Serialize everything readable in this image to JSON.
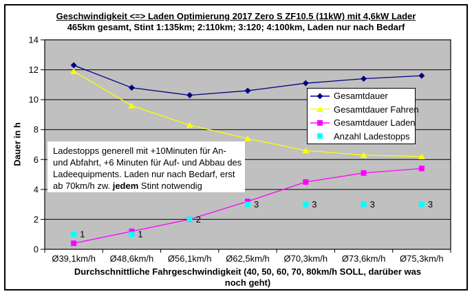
{
  "chart_data": {
    "type": "line",
    "title": "Geschwindigkeit <=> Laden Optimierung 2017 Zero S ZF10.5 (11kW) mit 4,6kW Lader",
    "subtitle": "465km gesamt, Stint 1:135km; 2:110km; 3:120; 4:100km, Laden nur nach Bedarf",
    "ylabel": "Dauer in h",
    "xlabel_lines": [
      "Durchschnittliche Fahrgeschwindigkeit (40, 50, 60, 70, 80km/h SOLL, darüber was",
      "noch geht)"
    ],
    "categories": [
      "Ø39,1km/h",
      "Ø48,6km/h",
      "Ø56,1km/h",
      "Ø62,5km/h",
      "Ø70,3km/h",
      "Ø73,6km/h",
      "Ø75,3km/h"
    ],
    "series": [
      {
        "name": "Gesamtdauer",
        "color": "#000080",
        "marker": "diamond",
        "line": true,
        "show_labels": false,
        "values": [
          12.3,
          10.8,
          10.3,
          10.6,
          11.1,
          11.4,
          11.6
        ]
      },
      {
        "name": "Gesamtdauer Fahren",
        "color": "#FFFF00",
        "marker": "triangle",
        "line": true,
        "show_labels": false,
        "values": [
          11.9,
          9.6,
          8.3,
          7.4,
          6.6,
          6.3,
          6.2
        ]
      },
      {
        "name": "Gesamtdauer Laden",
        "color": "#FF00FF",
        "marker": "square",
        "line": true,
        "show_labels": false,
        "values": [
          0.4,
          1.2,
          2.0,
          3.2,
          4.5,
          5.1,
          5.4
        ]
      },
      {
        "name": "Anzahl Ladestopps",
        "color": "#00FFFF",
        "marker": "square",
        "line": false,
        "show_labels": true,
        "values": [
          1,
          1,
          2,
          3,
          3,
          3,
          3
        ]
      }
    ],
    "ylim": [
      0,
      14
    ],
    "ytick_step": 2,
    "grid": "horizontal",
    "plot_bg": "#C0C0C0",
    "gridline_color": "#000000",
    "legend_position": "inside-right"
  },
  "annotation": {
    "lines": [
      [
        {
          "text": "Ladestopps generell mit +10Minuten für An-",
          "bold": false
        }
      ],
      [
        {
          "text": "und Abfahrt, +6 Minuten für Auf- und Abbau des",
          "bold": false
        }
      ],
      [
        {
          "text": "Ladeequipments. Laden nur nach Bedarf, erst",
          "bold": false
        }
      ],
      [
        {
          "text": "ab 70km/h zw. ",
          "bold": false
        },
        {
          "text": "jedem",
          "bold": true
        },
        {
          "text": " Stint notwendig",
          "bold": false
        }
      ]
    ]
  }
}
